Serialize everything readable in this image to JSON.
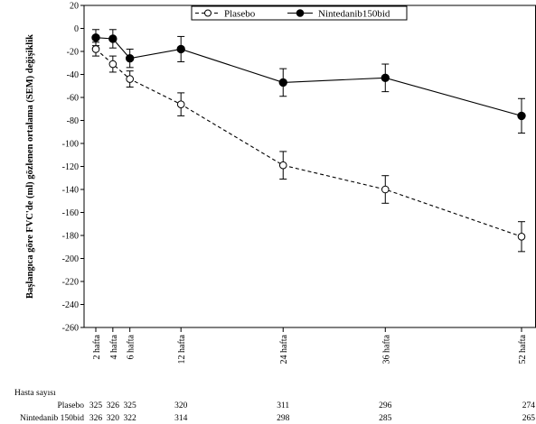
{
  "chart_data": {
    "type": "line",
    "ylabel": "Başlangıca göre FVC'de (ml) gözlenen ortalama (SEM) değişiklik",
    "xlabel": "",
    "ylim": [
      -260,
      20
    ],
    "yticks": [
      20,
      0,
      -20,
      -40,
      -60,
      -80,
      -100,
      -120,
      -140,
      -160,
      -180,
      -200,
      -220,
      -240,
      -260
    ],
    "x": [
      2,
      4,
      6,
      12,
      24,
      36,
      52
    ],
    "xtick_labels": [
      "2 hafta",
      "4 hafta",
      "6 hafta",
      "12 hafta",
      "24 hafta",
      "36 hafta",
      "52 hafta"
    ],
    "grid": false,
    "legend_position": "top-center",
    "series": [
      {
        "name": "Plasebo",
        "marker": "open-circle",
        "line_style": "dashed",
        "values": [
          -18,
          -31,
          -44,
          -66,
          -119,
          -140,
          -181
        ],
        "errors": [
          6,
          7,
          7,
          10,
          12,
          12,
          13
        ]
      },
      {
        "name": "Nintedanib150bid",
        "marker": "filled-circle",
        "line_style": "solid",
        "values": [
          -8,
          -9,
          -26,
          -18,
          -47,
          -43,
          -76
        ],
        "errors": [
          7,
          8,
          8,
          11,
          12,
          12,
          15
        ]
      }
    ],
    "patients_table": {
      "title": "Hasta sayısı",
      "rows": [
        {
          "label": "Plasebo",
          "counts": [
            "325",
            "326",
            "325",
            "320",
            "311",
            "296",
            "274"
          ]
        },
        {
          "label": "Nintedanib 150bid",
          "counts": [
            "326",
            "320",
            "322",
            "314",
            "298",
            "285",
            "265"
          ]
        }
      ]
    }
  }
}
